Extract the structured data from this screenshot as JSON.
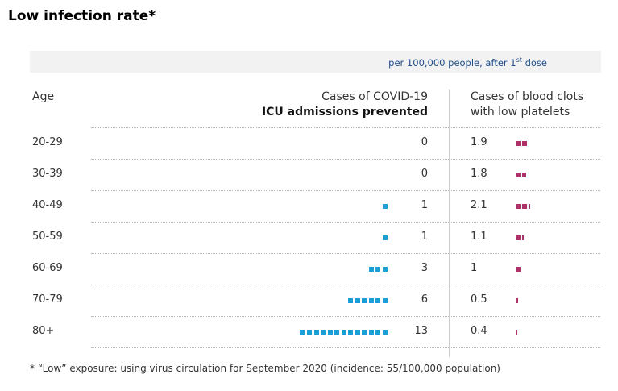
{
  "title": "Low infection rate*",
  "unit_note": {
    "text": "per 100,000 people, after 1",
    "sup": "st",
    "tail": " dose"
  },
  "headers": {
    "age": "Age",
    "covid_line1": "Cases of COVID-19",
    "covid_line2": "ICU admissions prevented",
    "clots_line1": "Cases of blood clots",
    "clots_line2": "with low platelets"
  },
  "footnote": "* “Low” exposure: using virus circulation for September 2020 (incidence: 55/100,000 population)",
  "colors": {
    "icu": "#1a9fd6",
    "clots": "#b0306a"
  },
  "chart_data": {
    "type": "table",
    "categories": [
      "20-29",
      "30-39",
      "40-49",
      "50-59",
      "60-69",
      "70-79",
      "80+"
    ],
    "series": [
      {
        "name": "ICU admissions prevented",
        "values": [
          0,
          0,
          1,
          1,
          3,
          6,
          13
        ]
      },
      {
        "name": "Cases of blood clots with low platelets",
        "values": [
          1.9,
          1.8,
          2.1,
          1.1,
          1,
          0.5,
          0.4
        ]
      }
    ],
    "rows": [
      {
        "age": "20-29",
        "icu": "0",
        "clots": "1.9"
      },
      {
        "age": "30-39",
        "icu": "0",
        "clots": "1.8"
      },
      {
        "age": "40-49",
        "icu": "1",
        "clots": "2.1"
      },
      {
        "age": "50-59",
        "icu": "1",
        "clots": "1.1"
      },
      {
        "age": "60-69",
        "icu": "3",
        "clots": "1"
      },
      {
        "age": "70-79",
        "icu": "6",
        "clots": "0.5"
      },
      {
        "age": "80+",
        "icu": "13",
        "clots": "0.4"
      }
    ]
  }
}
